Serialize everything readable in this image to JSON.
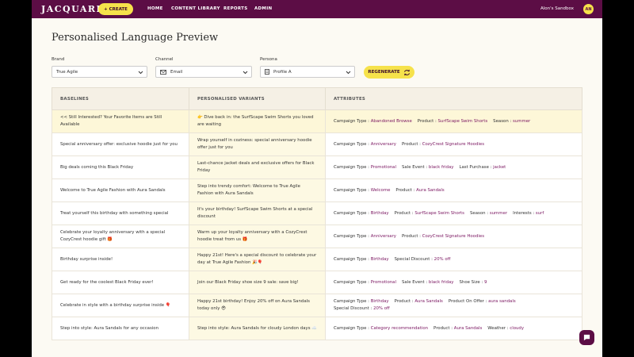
{
  "nav": {
    "logo": "JACQUARD",
    "create": "+ CREATE",
    "links": [
      "HOME",
      "CONTENT LIBRARY",
      "REPORTS",
      "ADMIN"
    ],
    "sandbox": "Alon's Sandbox",
    "avatar": "AN"
  },
  "header": {
    "title": "Personalised Language Preview"
  },
  "filters": [
    {
      "label": "Brand",
      "value": "True Agile"
    },
    {
      "label": "Channel",
      "value": "Email"
    },
    {
      "label": "Persona",
      "value": "Profile A"
    }
  ],
  "regenerate": "REGENERATE",
  "table": {
    "headers": [
      "BASELINES",
      "PERSONALISED VARIANTS",
      "ATTRIBUTES"
    ],
    "rows": [
      {
        "baseline": "<< Still Interested? Your Favorite Items are Still Available",
        "variant": "👉 Dive back in: the SurfScape Swim Shorts you loved are waiting",
        "attributes": [
          {
            "key": "Campaign Type :",
            "value": "Abandoned Browse"
          },
          {
            "key": "Product :",
            "value": "SurfScape Swim Shorts"
          },
          {
            "key": "Season :",
            "value": "summer"
          }
        ]
      },
      {
        "baseline": "Special anniversary offer: exclusive hoodie just for you",
        "variant": "Wrap yourself in coziness: special anniversary hoodie offer just for you",
        "attributes": [
          {
            "key": "Campaign Type :",
            "value": "Anniversary"
          },
          {
            "key": "Product :",
            "value": "CozyCrest Signature Hoodies"
          }
        ]
      },
      {
        "baseline": "Big deals coming this Black Friday",
        "variant": "Last-chance jacket deals and exclusive offers for Black Friday",
        "attributes": [
          {
            "key": "Campaign Type :",
            "value": "Promotional"
          },
          {
            "key": "Sale Event :",
            "value": "black friday"
          },
          {
            "key": "Last Purchase :",
            "value": "jacket"
          }
        ]
      },
      {
        "baseline": "Welcome to True Agile Fashion with Aura Sandals",
        "variant": "Step into trendy comfort: Welcome to True Agile Fashion with Aura Sandals",
        "attributes": [
          {
            "key": "Campaign Type :",
            "value": "Welcome"
          },
          {
            "key": "Product :",
            "value": "Aura Sandals"
          }
        ]
      },
      {
        "baseline": "Treat yourself this birthday with something special",
        "variant": "It's your birthday! SurfScape Swim Shorts at a special discount",
        "attributes": [
          {
            "key": "Campaign Type :",
            "value": "Birthday"
          },
          {
            "key": "Product :",
            "value": "SurfScape Swim Shorts"
          },
          {
            "key": "Season :",
            "value": "summer"
          },
          {
            "key": "Interests :",
            "value": "surf"
          }
        ]
      },
      {
        "baseline": "Celebrate your loyalty anniversary with a special CozyCrest hoodie gift 🎁",
        "variant": "Warm up your loyalty anniversary with a CozyCrest hoodie treat from us 🎁",
        "attributes": [
          {
            "key": "Campaign Type :",
            "value": "Anniversary"
          },
          {
            "key": "Product :",
            "value": "CozyCrest Signature Hoodies"
          }
        ]
      },
      {
        "baseline": "Birthday surprise inside!",
        "variant": "Happy 21st! Here's a special discount to celebrate your day at True Agile Fashion 🎉🎈",
        "attributes": [
          {
            "key": "Campaign Type :",
            "value": "Birthday"
          },
          {
            "key": "Special Discount :",
            "value": "20% off"
          }
        ]
      },
      {
        "baseline": "Get ready for the coolest Black Friday ever!",
        "variant": "Join our Black Friday shoe size 9 sale: save big!",
        "attributes": [
          {
            "key": "Campaign Type :",
            "value": "Promotional"
          },
          {
            "key": "Sale Event :",
            "value": "black friday"
          },
          {
            "key": "Shoe Size :",
            "value": "9"
          }
        ]
      },
      {
        "baseline": "Celebrate in style with a birthday surprise inside 🎈",
        "variant": "Happy 21st birthday! Enjoy 20% off on Aura Sandals today only 😎",
        "attributes": [
          {
            "key": "Campaign Type :",
            "value": "Birthday"
          },
          {
            "key": "Product :",
            "value": "Aura Sandals"
          },
          {
            "key": "Product On Offer :",
            "value": "aura sandals"
          },
          {
            "key": "Special Discount :",
            "value": "20% off"
          }
        ]
      },
      {
        "baseline": "Step into style: Aura Sandals for any occasion",
        "variant": "Step into style: Aura Sandals for cloudy London days ☁️",
        "attributes": [
          {
            "key": "Campaign Type :",
            "value": "Category recommendation"
          },
          {
            "key": "Product :",
            "value": "Aura Sandals"
          },
          {
            "key": "Weather :",
            "value": "cloudy"
          }
        ]
      }
    ]
  }
}
